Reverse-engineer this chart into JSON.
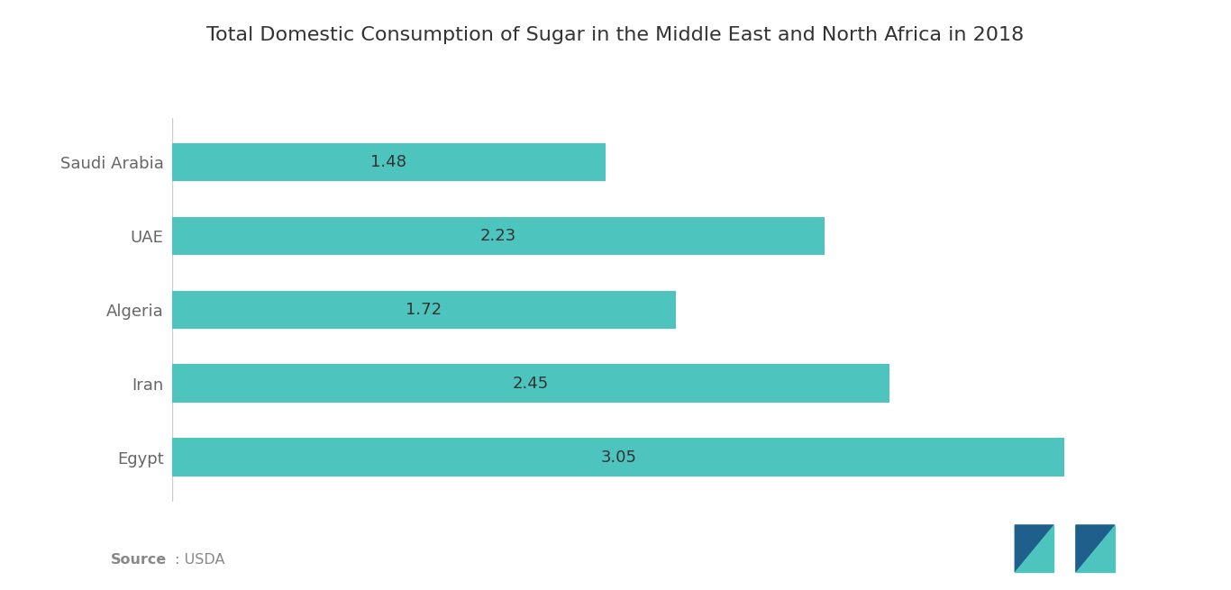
{
  "title": "Total Domestic Consumption of Sugar in the Middle East and North Africa in 2018",
  "categories": [
    "Egypt",
    "Iran",
    "Algeria",
    "UAE",
    "Saudi Arabia"
  ],
  "values": [
    3.05,
    2.45,
    1.72,
    2.23,
    1.48
  ],
  "bar_color": "#4DC5BE",
  "text_color": "#333333",
  "label_color": "#666666",
  "source_bold": "Source",
  "source_normal": " : USDA",
  "source_color": "#888888",
  "title_fontsize": 16,
  "label_fontsize": 13,
  "value_fontsize": 13,
  "xlim": [
    0,
    3.45
  ],
  "background_color": "#ffffff",
  "logo_dark": "#1f5f8b",
  "logo_teal": "#4DC5BE"
}
